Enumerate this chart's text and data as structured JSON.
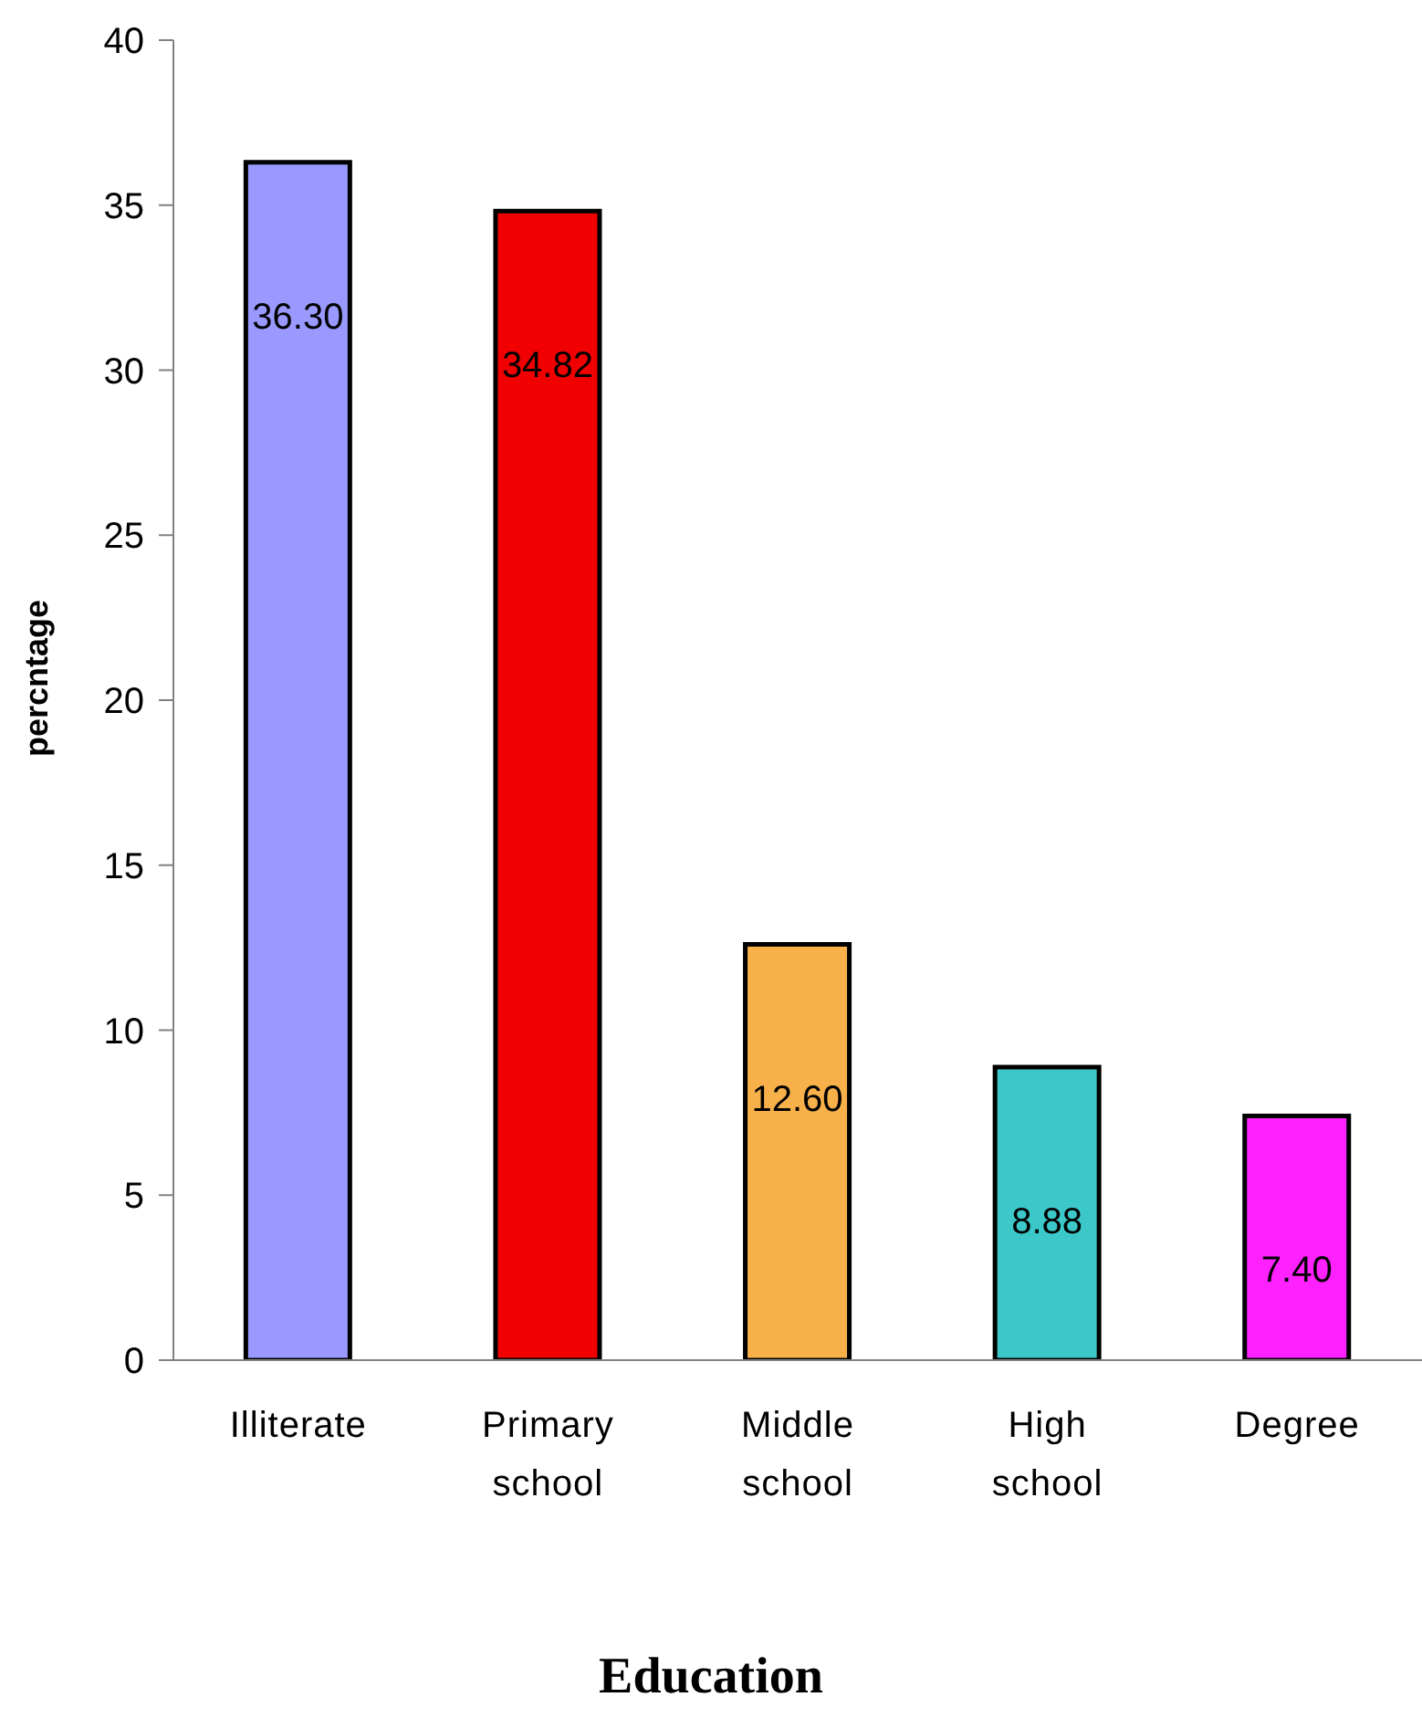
{
  "chart_data": {
    "type": "bar",
    "xlabel": "Education",
    "ylabel": "percntage",
    "categories": [
      "Illiterate",
      "Primary school",
      "Middle school",
      "High school",
      "Degree"
    ],
    "values": [
      36.3,
      34.82,
      12.6,
      8.88,
      7.4
    ],
    "colors": [
      "#9999ff",
      "#f00000",
      "#f7b04a",
      "#3cc8c8",
      "#ff22ff"
    ],
    "value_labels": [
      "36.30",
      "34.82",
      "12.60",
      "8.88",
      "7.40"
    ],
    "ylim": [
      0,
      40
    ],
    "yticks": [
      0,
      5,
      10,
      15,
      20,
      25,
      30,
      35,
      40
    ]
  }
}
